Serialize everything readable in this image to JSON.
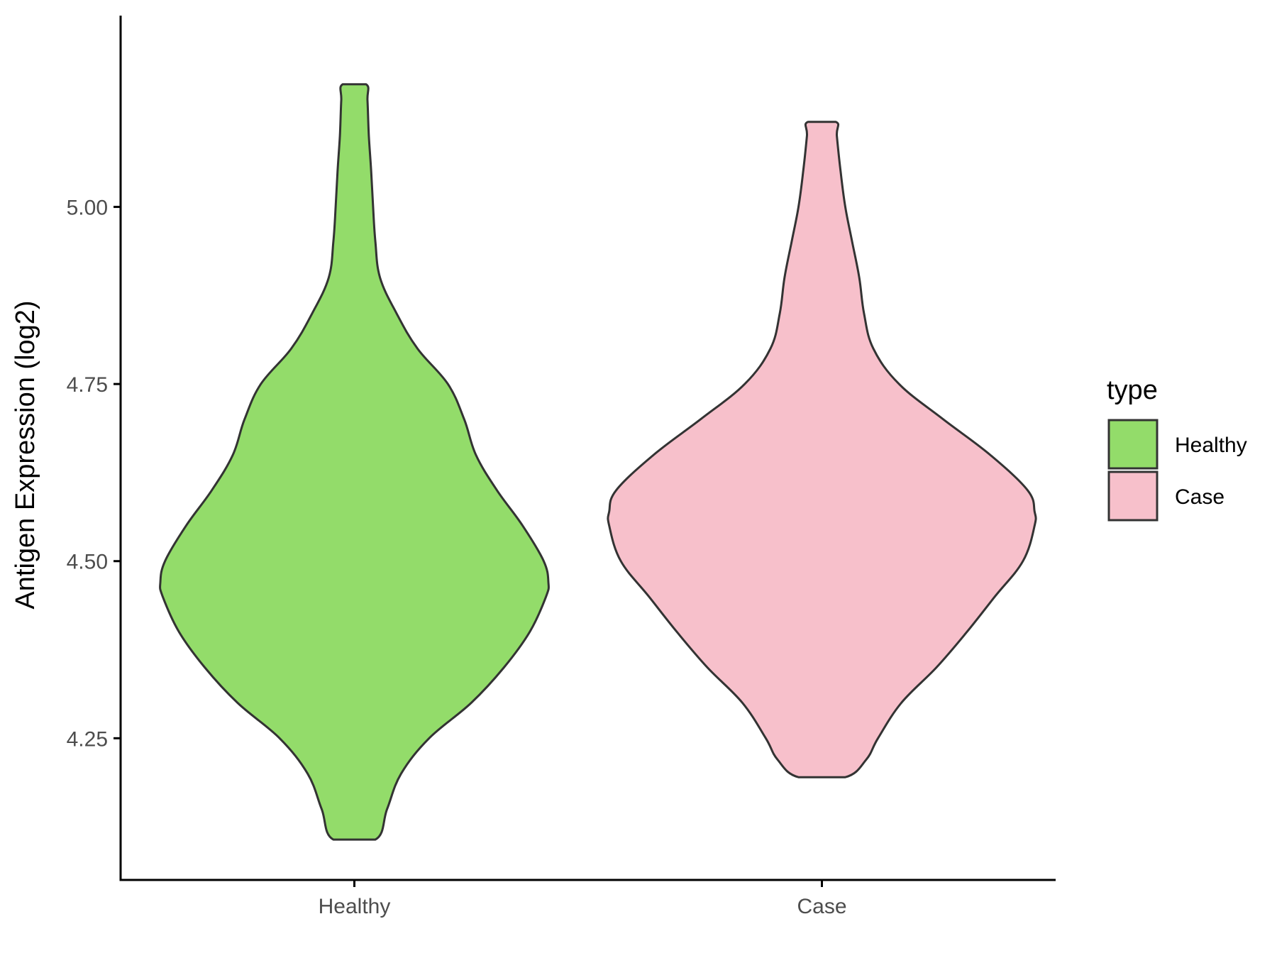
{
  "chart_data": {
    "type": "violin",
    "ylabel": "Antigen Expression (log2)",
    "xlabel": "",
    "categories": [
      "Healthy",
      "Case"
    ],
    "y_ticks": [
      4.25,
      4.5,
      4.75,
      5.0
    ],
    "y_tick_labels": [
      "4.25",
      "4.50",
      "4.75",
      "5.00"
    ],
    "ylim": [
      4.05,
      5.27
    ],
    "grid": false,
    "legend": {
      "title": "type",
      "position": "right",
      "entries": [
        {
          "label": "Healthy",
          "color": "#93DC6A"
        },
        {
          "label": "Case",
          "color": "#F7C0CB"
        }
      ]
    },
    "series": [
      {
        "category": "Healthy",
        "color": "#93DC6A",
        "min": 4.107,
        "max": 5.173,
        "density_profile": [
          {
            "y": 4.107,
            "half_width": 0.045
          },
          {
            "y": 4.15,
            "half_width": 0.07
          },
          {
            "y": 4.2,
            "half_width": 0.1
          },
          {
            "y": 4.25,
            "half_width": 0.16
          },
          {
            "y": 4.3,
            "half_width": 0.25
          },
          {
            "y": 4.35,
            "half_width": 0.32
          },
          {
            "y": 4.4,
            "half_width": 0.375
          },
          {
            "y": 4.45,
            "half_width": 0.41
          },
          {
            "y": 4.47,
            "half_width": 0.415
          },
          {
            "y": 4.5,
            "half_width": 0.405
          },
          {
            "y": 4.55,
            "half_width": 0.36
          },
          {
            "y": 4.6,
            "half_width": 0.305
          },
          {
            "y": 4.65,
            "half_width": 0.26
          },
          {
            "y": 4.7,
            "half_width": 0.235
          },
          {
            "y": 4.75,
            "half_width": 0.2
          },
          {
            "y": 4.8,
            "half_width": 0.135
          },
          {
            "y": 4.85,
            "half_width": 0.09
          },
          {
            "y": 4.9,
            "half_width": 0.055
          },
          {
            "y": 4.95,
            "half_width": 0.045
          },
          {
            "y": 5.0,
            "half_width": 0.04
          },
          {
            "y": 5.05,
            "half_width": 0.036
          },
          {
            "y": 5.1,
            "half_width": 0.031
          },
          {
            "y": 5.15,
            "half_width": 0.028
          },
          {
            "y": 5.173,
            "half_width": 0.025
          }
        ]
      },
      {
        "category": "Case",
        "color": "#F7C0CB",
        "min": 4.195,
        "max": 5.12,
        "density_profile": [
          {
            "y": 4.195,
            "half_width": 0.05
          },
          {
            "y": 4.22,
            "half_width": 0.095
          },
          {
            "y": 4.25,
            "half_width": 0.12
          },
          {
            "y": 4.3,
            "half_width": 0.17
          },
          {
            "y": 4.35,
            "half_width": 0.245
          },
          {
            "y": 4.4,
            "half_width": 0.31
          },
          {
            "y": 4.45,
            "half_width": 0.37
          },
          {
            "y": 4.5,
            "half_width": 0.43
          },
          {
            "y": 4.55,
            "half_width": 0.455
          },
          {
            "y": 4.57,
            "half_width": 0.455
          },
          {
            "y": 4.6,
            "half_width": 0.44
          },
          {
            "y": 4.65,
            "half_width": 0.36
          },
          {
            "y": 4.7,
            "half_width": 0.26
          },
          {
            "y": 4.75,
            "half_width": 0.165
          },
          {
            "y": 4.8,
            "half_width": 0.11
          },
          {
            "y": 4.85,
            "half_width": 0.09
          },
          {
            "y": 4.9,
            "half_width": 0.08
          },
          {
            "y": 4.95,
            "half_width": 0.065
          },
          {
            "y": 5.0,
            "half_width": 0.05
          },
          {
            "y": 5.05,
            "half_width": 0.04
          },
          {
            "y": 5.1,
            "half_width": 0.032
          },
          {
            "y": 5.12,
            "half_width": 0.03
          }
        ]
      }
    ]
  }
}
